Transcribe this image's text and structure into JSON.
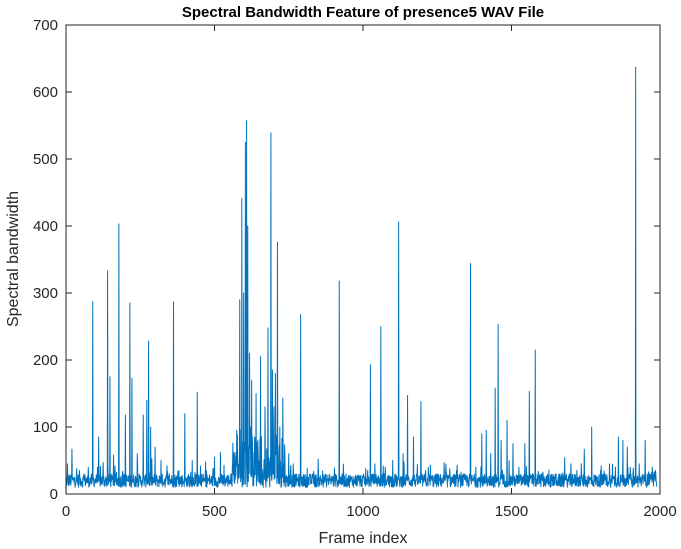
{
  "chart_data": {
    "type": "line",
    "title": "Spectral Bandwidth Feature of presence5 WAV File",
    "xlabel": "Frame index",
    "ylabel": "Spectral bandwidth",
    "xlim": [
      0,
      2000
    ],
    "ylim": [
      0,
      700
    ],
    "xticks": [
      0,
      500,
      1000,
      1500,
      2000
    ],
    "yticks": [
      0,
      100,
      200,
      300,
      400,
      500,
      600,
      700
    ],
    "xtick_labels": [
      "0",
      "500",
      "1000",
      "1500",
      "2000"
    ],
    "ytick_labels": [
      "0",
      "100",
      "200",
      "300",
      "400",
      "500",
      "600",
      "700"
    ],
    "grid": false,
    "legend": "none",
    "series_color": "#0072BD",
    "x_count": 1990,
    "baseline": [
      10,
      30
    ],
    "peaks": [
      [
        5,
        45
      ],
      [
        20,
        67
      ],
      [
        45,
        35
      ],
      [
        60,
        30
      ],
      [
        75,
        40
      ],
      [
        90,
        287
      ],
      [
        110,
        85
      ],
      [
        125,
        47
      ],
      [
        140,
        333
      ],
      [
        148,
        175
      ],
      [
        160,
        58
      ],
      [
        178,
        403
      ],
      [
        190,
        30
      ],
      [
        200,
        118
      ],
      [
        215,
        285
      ],
      [
        222,
        173
      ],
      [
        240,
        60
      ],
      [
        260,
        118
      ],
      [
        272,
        140
      ],
      [
        278,
        228
      ],
      [
        285,
        100
      ],
      [
        300,
        70
      ],
      [
        320,
        50
      ],
      [
        340,
        42
      ],
      [
        362,
        287
      ],
      [
        380,
        35
      ],
      [
        400,
        120
      ],
      [
        425,
        50
      ],
      [
        442,
        152
      ],
      [
        470,
        48
      ],
      [
        500,
        55
      ],
      [
        520,
        62
      ],
      [
        560,
        40
      ],
      [
        575,
        95
      ],
      [
        585,
        290
      ],
      [
        592,
        441
      ],
      [
        598,
        300
      ],
      [
        604,
        525
      ],
      [
        608,
        557
      ],
      [
        612,
        400
      ],
      [
        618,
        210
      ],
      [
        625,
        170
      ],
      [
        640,
        150
      ],
      [
        655,
        205
      ],
      [
        670,
        130
      ],
      [
        680,
        248
      ],
      [
        690,
        539
      ],
      [
        695,
        185
      ],
      [
        700,
        130
      ],
      [
        705,
        180
      ],
      [
        712,
        376
      ],
      [
        720,
        100
      ],
      [
        730,
        143
      ],
      [
        750,
        60
      ],
      [
        765,
        45
      ],
      [
        790,
        268
      ],
      [
        830,
        30
      ],
      [
        870,
        25
      ],
      [
        920,
        318
      ],
      [
        960,
        22
      ],
      [
        1000,
        25
      ],
      [
        1025,
        193
      ],
      [
        1040,
        45
      ],
      [
        1060,
        250
      ],
      [
        1075,
        40
      ],
      [
        1100,
        50
      ],
      [
        1120,
        406
      ],
      [
        1135,
        60
      ],
      [
        1150,
        147
      ],
      [
        1170,
        85
      ],
      [
        1195,
        138
      ],
      [
        1220,
        40
      ],
      [
        1250,
        30
      ],
      [
        1280,
        35
      ],
      [
        1310,
        28
      ],
      [
        1340,
        30
      ],
      [
        1362,
        344
      ],
      [
        1380,
        40
      ],
      [
        1400,
        90
      ],
      [
        1415,
        95
      ],
      [
        1430,
        60
      ],
      [
        1445,
        158
      ],
      [
        1455,
        253
      ],
      [
        1465,
        80
      ],
      [
        1485,
        110
      ],
      [
        1505,
        75
      ],
      [
        1525,
        40
      ],
      [
        1545,
        75
      ],
      [
        1560,
        153
      ],
      [
        1580,
        215
      ],
      [
        1600,
        30
      ],
      [
        1650,
        30
      ],
      [
        1700,
        45
      ],
      [
        1720,
        35
      ],
      [
        1745,
        67
      ],
      [
        1770,
        100
      ],
      [
        1800,
        35
      ],
      [
        1830,
        45
      ],
      [
        1850,
        40
      ],
      [
        1860,
        85
      ],
      [
        1875,
        80
      ],
      [
        1890,
        70
      ],
      [
        1900,
        40
      ],
      [
        1918,
        637
      ],
      [
        1930,
        45
      ],
      [
        1950,
        80
      ],
      [
        1965,
        30
      ],
      [
        1985,
        35
      ]
    ]
  }
}
